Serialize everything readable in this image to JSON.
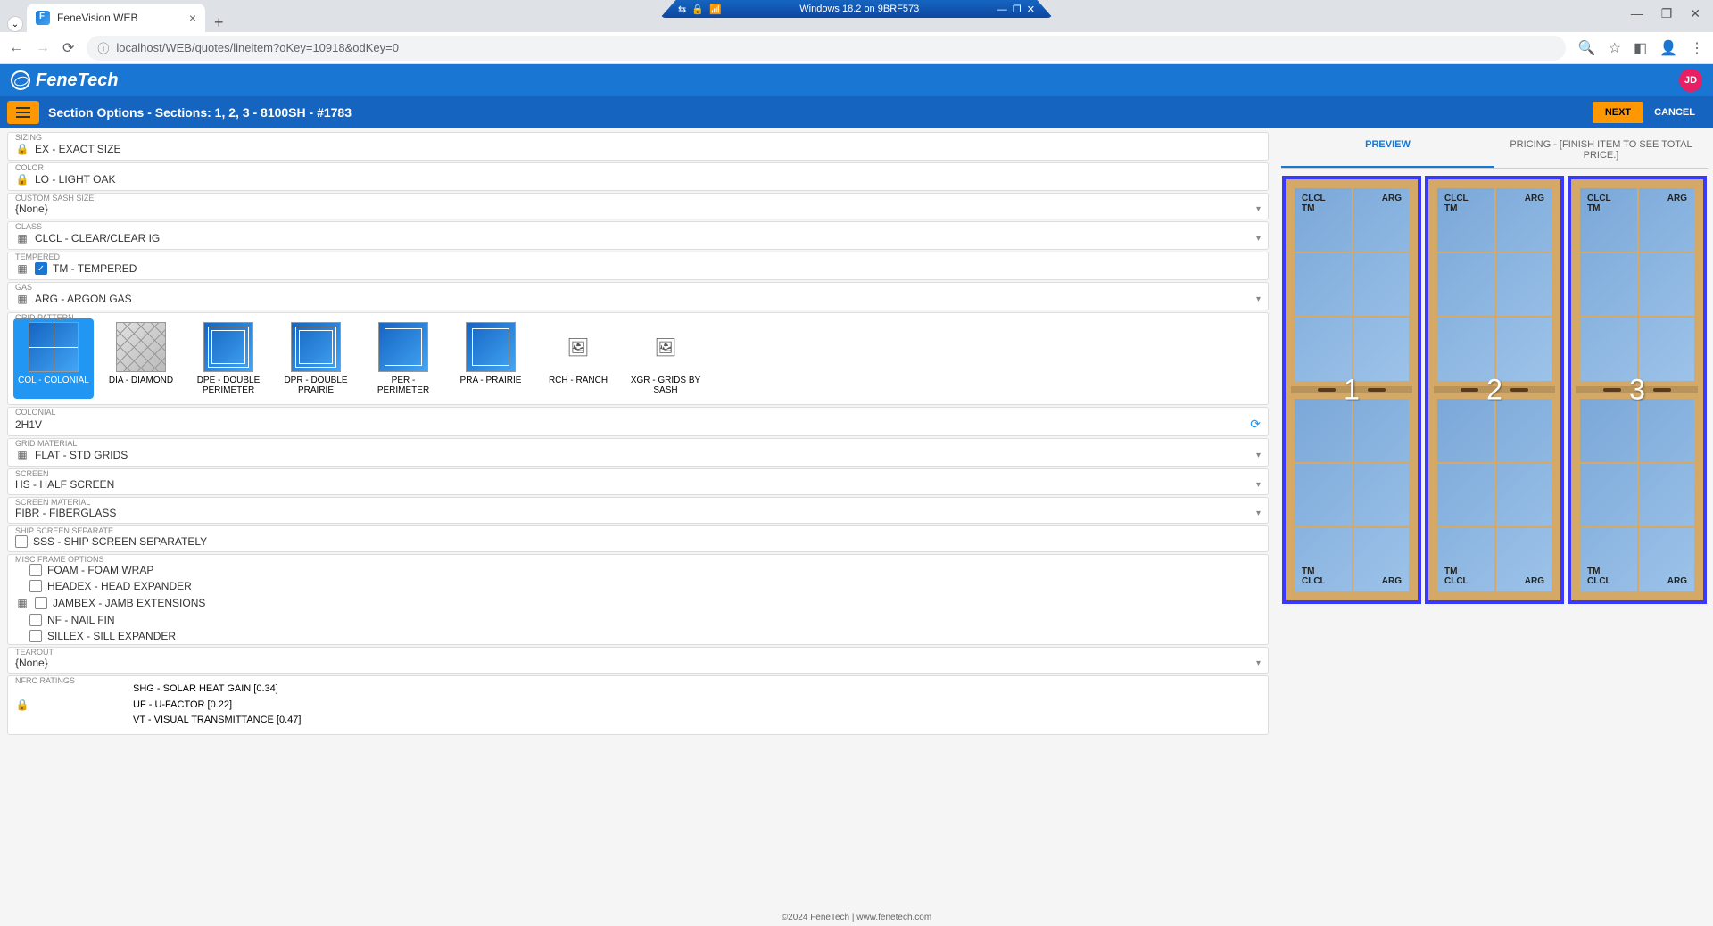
{
  "remote": {
    "title": "Windows 18.2 on 9BRF573"
  },
  "browser": {
    "tab_title": "FeneVision WEB",
    "url": "localhost/WEB/quotes/lineitem?oKey=10918&odKey=0"
  },
  "app": {
    "company": "FeneTech",
    "avatar": "JD",
    "section_title": "Section Options - Sections: 1, 2, 3 - 8100SH - #1783",
    "next_label": "NEXT",
    "cancel_label": "CANCEL"
  },
  "fields": {
    "sizing": {
      "label": "SIZING",
      "value": "EX - EXACT SIZE"
    },
    "color": {
      "label": "COLOR",
      "value": "LO - LIGHT OAK"
    },
    "custom_sash_size": {
      "label": "CUSTOM SASH SIZE",
      "value": "{None}"
    },
    "glass": {
      "label": "GLASS",
      "value": "CLCL - CLEAR/CLEAR IG"
    },
    "tempered": {
      "label": "TEMPERED",
      "value": "TM - TEMPERED"
    },
    "gas": {
      "label": "GAS",
      "value": "ARG - ARGON GAS"
    },
    "grid_pattern_label": "GRID PATTERN",
    "colonial": {
      "label": "COLONIAL",
      "value": "2H1V"
    },
    "grid_material": {
      "label": "GRID MATERIAL",
      "value": "FLAT - STD GRIDS"
    },
    "screen": {
      "label": "SCREEN",
      "value": "HS - HALF SCREEN"
    },
    "screen_material": {
      "label": "SCREEN MATERIAL",
      "value": "FIBR - FIBERGLASS"
    },
    "ship_screen": {
      "label": "SHIP SCREEN SEPARATE",
      "value": "SSS - SHIP SCREEN SEPARATELY"
    },
    "misc_label": "MISC FRAME OPTIONS",
    "misc": {
      "foam": "FOAM - FOAM WRAP",
      "headex": "HEADEX - HEAD EXPANDER",
      "jambex": "JAMBEX - JAMB EXTENSIONS",
      "nf": "NF - NAIL FIN",
      "sillex": "SILLEX - SILL EXPANDER"
    },
    "tearout": {
      "label": "TEAROUT",
      "value": "{None}"
    },
    "nfrc_label": "NFRC RATINGS",
    "nfrc": {
      "shg": "SHG - SOLAR HEAT GAIN [0.34]",
      "uf": "UF - U-FACTOR [0.22]",
      "vt": "VT - VISUAL TRANSMITTANCE [0.47]"
    }
  },
  "patterns": [
    {
      "code": "COL - COLONIAL",
      "thumb": "grid2x2",
      "selected": true
    },
    {
      "code": "DIA - DIAMOND",
      "thumb": "diamond"
    },
    {
      "code": "DPE - DOUBLE PERIMETER",
      "thumb": "dblperim"
    },
    {
      "code": "DPR - DOUBLE PRAIRIE",
      "thumb": "dblperim"
    },
    {
      "code": "PER - PERIMETER",
      "thumb": "perim"
    },
    {
      "code": "PRA - PRAIRIE",
      "thumb": "perim"
    },
    {
      "code": "RCH - RANCH",
      "thumb": "placeholder"
    },
    {
      "code": "XGR - GRIDS BY SASH",
      "thumb": "placeholder"
    }
  ],
  "tabs": {
    "preview": "PREVIEW",
    "pricing": "PRICING - [FINISH ITEM TO SEE TOTAL PRICE.]"
  },
  "preview_windows": [
    {
      "num": "1",
      "top_tl": "CLCL\nTM",
      "top_tr": "ARG",
      "bot_bl": "TM\nCLCL",
      "bot_br": "ARG"
    },
    {
      "num": "2",
      "top_tl": "CLCL\nTM",
      "top_tr": "ARG",
      "bot_bl": "TM\nCLCL",
      "bot_br": "ARG"
    },
    {
      "num": "3",
      "top_tl": "CLCL\nTM",
      "top_tr": "ARG",
      "bot_bl": "TM\nCLCL",
      "bot_br": "ARG"
    }
  ],
  "footer": "©2024 FeneTech | www.fenetech.com",
  "colors": {
    "primary": "#1976d2",
    "accent": "#ff9800",
    "frame": "#d4a968",
    "selection": "#3838ff"
  }
}
